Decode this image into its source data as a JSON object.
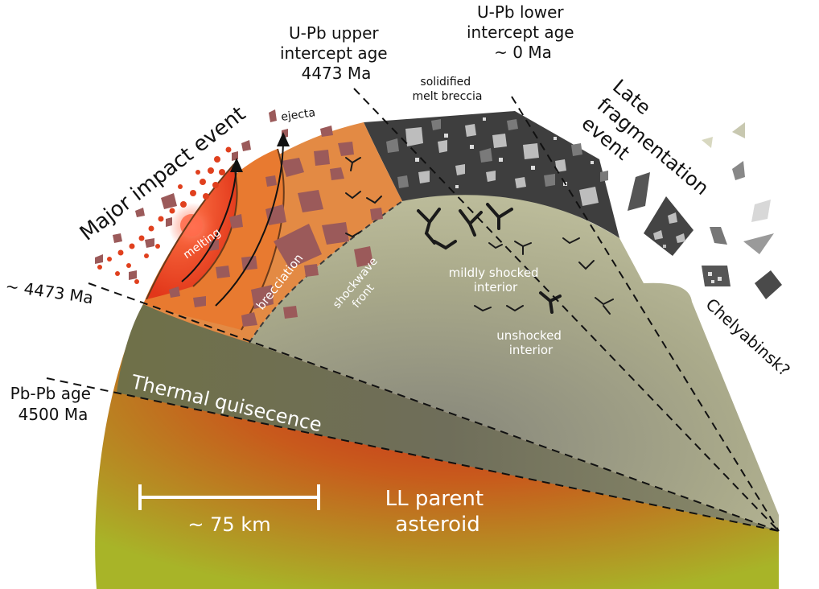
{
  "labels": {
    "upper_intercept": [
      "U-Pb upper",
      "intercept age",
      "4473 Ma"
    ],
    "lower_intercept": [
      "U-Pb lower",
      "intercept age",
      "~ 0 Ma"
    ],
    "melt_breccia": [
      "solidified",
      "melt breccia"
    ],
    "late_fragmentation": [
      "Late",
      "fragmentation",
      "event"
    ],
    "major_impact": "Major impact event",
    "ejecta": "ejecta",
    "melting": "melting",
    "brecciation": "brecciation",
    "shockwave": [
      "shockwave",
      "front"
    ],
    "mildly_shocked": [
      "mildly shocked",
      "interior"
    ],
    "unshocked": [
      "unshocked",
      "interior"
    ],
    "age_4473": "~ 4473 Ma",
    "pbpb": [
      "Pb-Pb age",
      "4500 Ma"
    ],
    "thermal": "Thermal quisecence",
    "scale": "~ 75 km",
    "asteroid": [
      "LL parent",
      "asteroid"
    ],
    "chelyabinsk": "Chelyabinsk?"
  },
  "colors": {
    "melt_core": "#e23a1a",
    "breccia_zone": "#e87a30",
    "impact_clast": "#9b5a5a",
    "melt_breccia": "#3d3d3d",
    "shocked_interior": "#b9b99a",
    "thermal_band": "#7a7a5a",
    "asteroid_center": "#c8261a",
    "asteroid_edge": "#a8b42a"
  }
}
